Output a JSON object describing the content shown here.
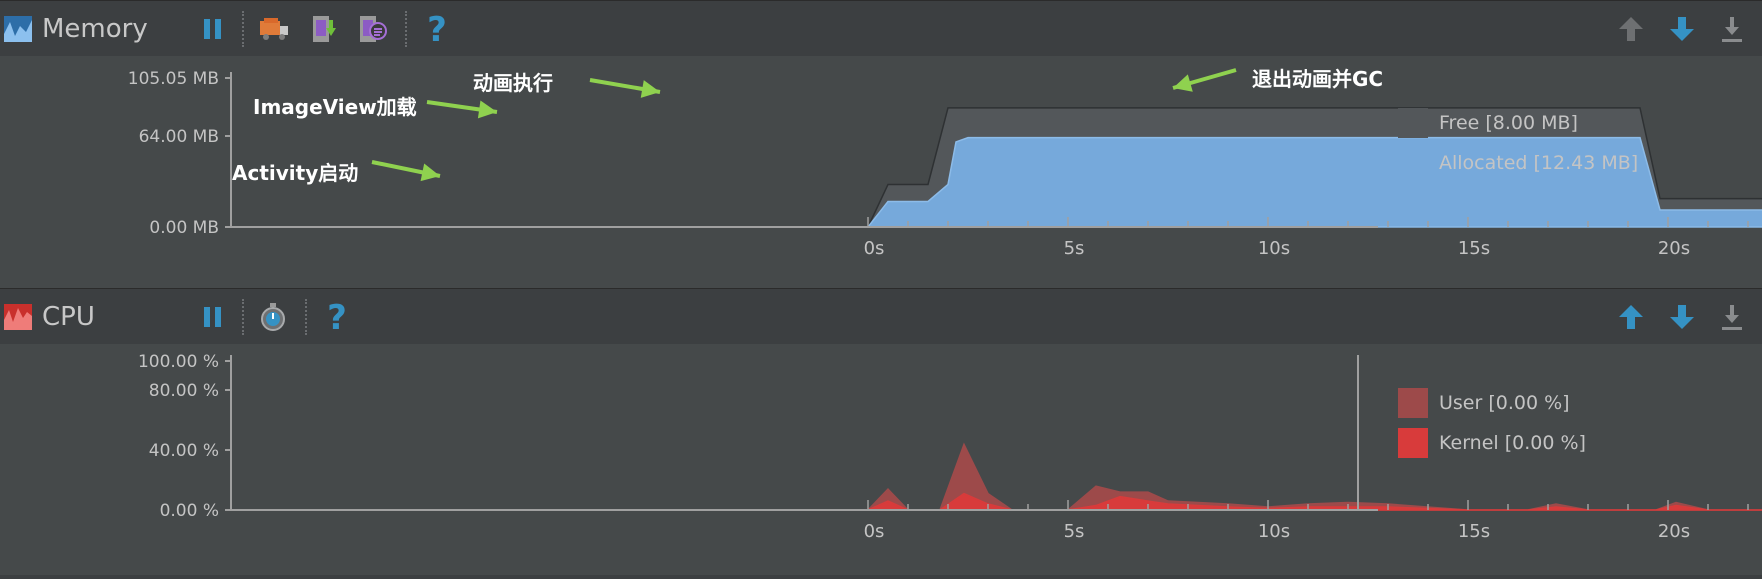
{
  "memory": {
    "title": "Memory",
    "y_ticks": [
      "105.05 MB",
      "64.00 MB",
      "0.00 MB"
    ],
    "x_ticks": [
      "0s",
      "5s",
      "10s",
      "15s",
      "20s"
    ],
    "legend": [
      {
        "label": "Free [8.00 MB]",
        "color": "#53575a"
      },
      {
        "label": "Allocated [12.43 MB]",
        "color": "#76a9db"
      }
    ],
    "annotations": {
      "activity": "Activity启动",
      "imageview": "ImageView加载",
      "anim": "动画执行",
      "exit": "退出动画并GC"
    }
  },
  "cpu": {
    "title": "CPU",
    "y_ticks": [
      "100.00 %",
      "80.00 %",
      "40.00 %",
      "0.00 %"
    ],
    "x_ticks": [
      "0s",
      "5s",
      "10s",
      "15s",
      "20s"
    ],
    "legend": [
      {
        "label": "User [0.00 %]",
        "color": "#9d4a4a"
      },
      {
        "label": "Kernel [0.00 %]",
        "color": "#d83b3b"
      }
    ]
  },
  "icons": {
    "pause": "pause-icon",
    "gc": "garbage-truck-icon",
    "dump_heap": "dump-heap-icon",
    "alloc_tracking": "allocation-tracking-icon",
    "method_trace": "stopwatch-icon",
    "help": "help-icon",
    "up": "arrow-up-icon",
    "down": "arrow-down-icon",
    "download": "download-icon"
  },
  "chart_data": [
    {
      "type": "area",
      "title": "Memory",
      "x": [
        0,
        0.5,
        1.5,
        2.0,
        2.2,
        2.5,
        5,
        10,
        15,
        18,
        19.3,
        19.8,
        23
      ],
      "xlim": [
        0,
        23
      ],
      "ylim": [
        0,
        105.05
      ],
      "series": [
        {
          "name": "Free [8.00 MB]",
          "values": [
            0,
            30,
            30,
            84,
            84,
            84,
            84,
            84,
            84,
            84,
            84,
            20,
            20
          ]
        },
        {
          "name": "Allocated [12.43 MB]",
          "values": [
            0,
            18,
            18,
            30,
            60,
            63,
            63,
            63,
            63,
            63,
            63,
            12,
            12
          ]
        }
      ]
    },
    {
      "type": "area",
      "title": "CPU",
      "x": [
        0,
        0.5,
        1,
        1.8,
        2.4,
        3,
        3.6,
        5,
        5.7,
        6.3,
        7,
        7.5,
        9,
        10,
        11,
        12,
        13,
        15,
        16.5,
        17.2,
        18,
        19.7,
        20.2,
        21,
        23
      ],
      "xlim": [
        0,
        23
      ],
      "ylim": [
        0,
        100
      ],
      "series": [
        {
          "name": "User [0.00 %]",
          "values": [
            0,
            14,
            0,
            0,
            44,
            11,
            0,
            0,
            16,
            12,
            12,
            6,
            4,
            2,
            4,
            5,
            4,
            0,
            0,
            4,
            0,
            0,
            5,
            0,
            0
          ]
        },
        {
          "name": "Kernel [0.00 %]",
          "values": [
            0,
            6,
            0,
            0,
            11,
            4,
            0,
            0,
            3,
            9,
            6,
            4,
            2,
            1,
            2,
            2,
            2,
            0,
            0,
            2,
            0,
            0,
            3,
            0,
            0
          ]
        }
      ]
    }
  ]
}
